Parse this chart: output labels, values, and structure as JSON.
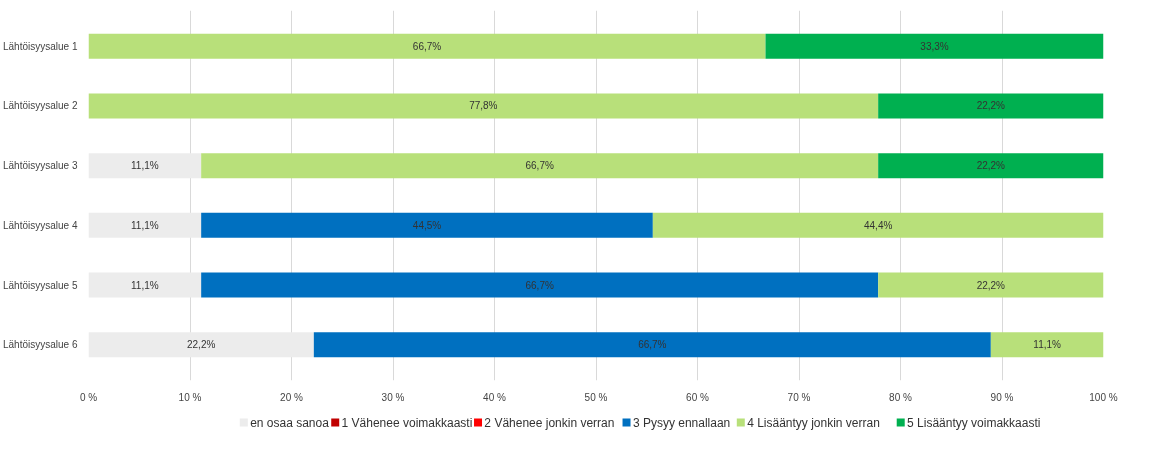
{
  "chart_data": {
    "type": "bar",
    "orientation": "horizontal",
    "stacked": true,
    "categories": [
      "Lähtöisyysalue 1",
      "Lähtöisyysalue 2",
      "Lähtöisyysalue 3",
      "Lähtöisyysalue 4",
      "Lähtöisyysalue 5",
      "Lähtöisyysalue 6"
    ],
    "series": [
      {
        "name": "en osaa sanoa",
        "color": "#ececec",
        "values": [
          null,
          null,
          11.1,
          11.1,
          11.1,
          22.2
        ],
        "value_labels": [
          null,
          null,
          "11,1%",
          "11,1%",
          "11,1%",
          "22,2%"
        ]
      },
      {
        "name": "1 Vähenee voimakkaasti",
        "color": "#c00000",
        "values": [
          null,
          null,
          null,
          null,
          null,
          null
        ]
      },
      {
        "name": "2 Vähenee jonkin verran",
        "color": "#ff0000",
        "values": [
          null,
          null,
          null,
          null,
          null,
          null
        ]
      },
      {
        "name": "3 Pysyy ennallaan",
        "color": "#0070c0",
        "values": [
          null,
          null,
          null,
          44.5,
          66.7,
          66.7
        ],
        "value_labels": [
          null,
          null,
          null,
          "44,5%",
          "66,7%",
          "66,7%"
        ]
      },
      {
        "name": "4 Lisääntyy jonkin verran",
        "color": "#b8e07a",
        "values": [
          66.7,
          77.8,
          66.7,
          44.4,
          22.2,
          11.1
        ],
        "value_labels": [
          "66,7%",
          "77,8%",
          "66,7%",
          "44,4%",
          "22,2%",
          "11,1%"
        ]
      },
      {
        "name": "5 Lisääntyy voimakkaasti",
        "color": "#00b050",
        "values": [
          33.3,
          22.2,
          22.2,
          null,
          null,
          null
        ],
        "value_labels": [
          "33,3%",
          "22,2%",
          "22,2%",
          null,
          null,
          null
        ]
      }
    ],
    "xlim": [
      0,
      100
    ],
    "xticks": [
      {
        "value": 0,
        "label": "0 %"
      },
      {
        "value": 10,
        "label": "10 %"
      },
      {
        "value": 20,
        "label": "20 %"
      },
      {
        "value": 30,
        "label": "30 %"
      },
      {
        "value": 40,
        "label": "40 %"
      },
      {
        "value": 50,
        "label": "50 %"
      },
      {
        "value": 60,
        "label": "60 %"
      },
      {
        "value": 70,
        "label": "70 %"
      },
      {
        "value": 80,
        "label": "80 %"
      },
      {
        "value": 90,
        "label": "90 %"
      },
      {
        "value": 100,
        "label": "100 %"
      }
    ],
    "grid": "x",
    "legend": "bottom"
  }
}
